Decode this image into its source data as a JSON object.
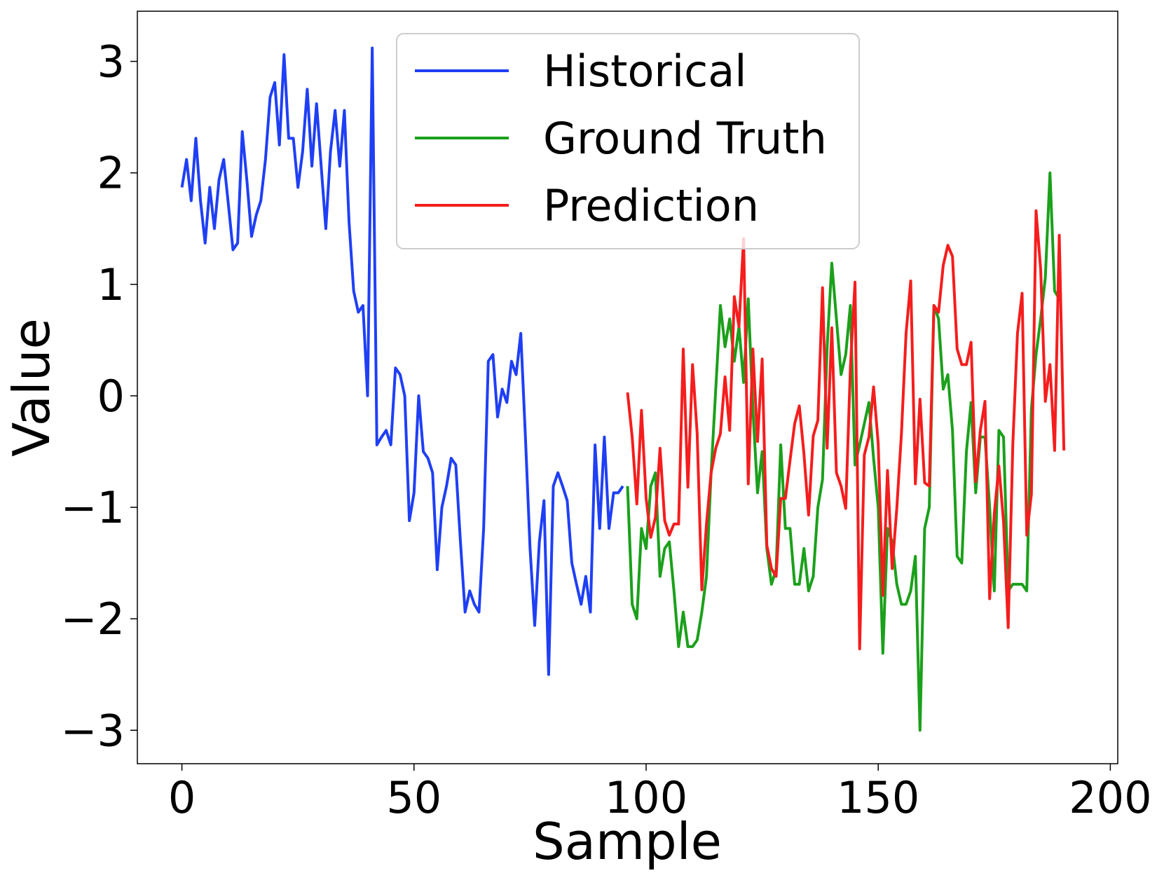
{
  "chart_data": {
    "type": "line",
    "title": "",
    "xlabel": "Sample",
    "ylabel": "Value",
    "xlim": [
      -9.6,
      201.6
    ],
    "ylim": [
      -3.3,
      3.45
    ],
    "xticks": [
      0,
      50,
      100,
      150,
      200
    ],
    "yticks": [
      -3,
      -2,
      -1,
      0,
      1,
      2,
      3
    ],
    "xtick_labels": [
      "0",
      "50",
      "100",
      "150",
      "200"
    ],
    "ytick_labels": [
      "−3",
      "−2",
      "−1",
      "0",
      "1",
      "2",
      "3"
    ],
    "grid": false,
    "legend": {
      "position": "top-center"
    },
    "series": [
      {
        "name": "Historical",
        "color": "#1f3ff5",
        "x_start": 0,
        "values": [
          1.87,
          2.12,
          1.75,
          2.31,
          1.75,
          1.37,
          1.87,
          1.5,
          1.94,
          2.12,
          1.72,
          1.31,
          1.37,
          2.37,
          1.93,
          1.43,
          1.62,
          1.75,
          2.12,
          2.68,
          2.81,
          2.25,
          3.06,
          2.31,
          2.31,
          1.87,
          2.19,
          2.75,
          2.06,
          2.62,
          2.06,
          1.5,
          2.19,
          2.56,
          2.06,
          2.56,
          1.56,
          0.94,
          0.75,
          0.81,
          0.0,
          3.12,
          -0.44,
          -0.37,
          -0.31,
          -0.44,
          0.25,
          0.19,
          0.0,
          -1.12,
          -0.87,
          0.0,
          -0.5,
          -0.56,
          -0.69,
          -1.56,
          -1.0,
          -0.81,
          -0.56,
          -0.62,
          -1.31,
          -1.94,
          -1.75,
          -1.87,
          -1.94,
          -1.19,
          0.31,
          0.37,
          -0.19,
          0.06,
          -0.06,
          0.31,
          0.19,
          0.56,
          -0.37,
          -1.37,
          -2.06,
          -1.31,
          -0.94,
          -2.5,
          -0.81,
          -0.69,
          -0.81,
          -0.94,
          -1.5,
          -1.69,
          -1.87,
          -1.62,
          -1.94,
          -0.44,
          -1.19,
          -0.37,
          -1.19,
          -0.87,
          -0.87,
          -0.81
        ]
      },
      {
        "name": "Ground Truth",
        "color": "#1ba01b",
        "x_start": 96,
        "values": [
          -0.81,
          -1.87,
          -2.0,
          -1.19,
          -1.37,
          -0.81,
          -0.69,
          -1.62,
          -1.37,
          -1.31,
          -1.75,
          -2.25,
          -1.94,
          -2.25,
          -2.25,
          -2.19,
          -1.94,
          -1.62,
          -0.69,
          0.06,
          0.81,
          0.44,
          0.69,
          0.31,
          0.62,
          0.12,
          0.87,
          -0.12,
          -0.87,
          -0.5,
          -1.37,
          -1.69,
          -1.56,
          -0.44,
          -1.19,
          -1.19,
          -1.69,
          -1.69,
          -1.37,
          -1.75,
          -1.62,
          -1.0,
          -0.75,
          0.44,
          1.19,
          0.69,
          0.19,
          0.37,
          0.81,
          -0.62,
          -0.44,
          -0.25,
          -0.06,
          -0.56,
          -1.0,
          -2.31,
          -1.19,
          -1.31,
          -1.69,
          -1.87,
          -1.87,
          -1.75,
          -1.44,
          -3.0,
          -1.19,
          -1.0,
          0.81,
          0.69,
          0.06,
          0.19,
          -0.31,
          -1.44,
          -1.5,
          -0.5,
          -0.06,
          -0.87,
          -0.37,
          -0.37,
          -1.0,
          -1.75,
          -0.31,
          -0.37,
          -1.75,
          -1.69,
          -1.69,
          -1.69,
          -1.75,
          -0.12,
          0.37,
          0.69,
          1.06,
          2.0,
          0.94,
          0.87
        ]
      },
      {
        "name": "Prediction",
        "color": "#f51d1d",
        "x_start": 96,
        "values": [
          0.03,
          -0.37,
          -0.97,
          -0.13,
          -0.92,
          -1.27,
          -1.09,
          -0.47,
          -1.12,
          -1.25,
          -1.15,
          -1.15,
          0.42,
          -0.82,
          0.28,
          -0.34,
          -1.74,
          -1.15,
          -0.69,
          -0.47,
          -0.34,
          0.17,
          -0.31,
          0.89,
          0.62,
          1.41,
          -0.79,
          0.42,
          -0.41,
          0.33,
          -1.34,
          -1.55,
          -1.62,
          -0.92,
          -0.92,
          -0.58,
          -0.25,
          -0.09,
          -0.52,
          -1.07,
          -0.36,
          -0.22,
          0.97,
          -0.47,
          0.61,
          -0.69,
          -0.81,
          -1.01,
          0.25,
          1.02,
          -2.27,
          -0.53,
          -0.37,
          0.08,
          -0.43,
          -1.79,
          -0.67,
          -1.55,
          -1.01,
          -0.34,
          0.56,
          1.03,
          -0.79,
          -0.03,
          -0.78,
          -0.81,
          0.81,
          0.75,
          1.17,
          1.35,
          1.25,
          0.42,
          0.28,
          0.28,
          0.48,
          -0.77,
          -0.31,
          -0.05,
          -1.82,
          -1.06,
          -0.63,
          -1.13,
          -2.08,
          -0.43,
          0.56,
          0.92,
          -1.25,
          -0.88,
          1.66,
          1.13,
          -0.05,
          0.28,
          -0.49,
          1.44,
          -0.49
        ]
      }
    ]
  }
}
